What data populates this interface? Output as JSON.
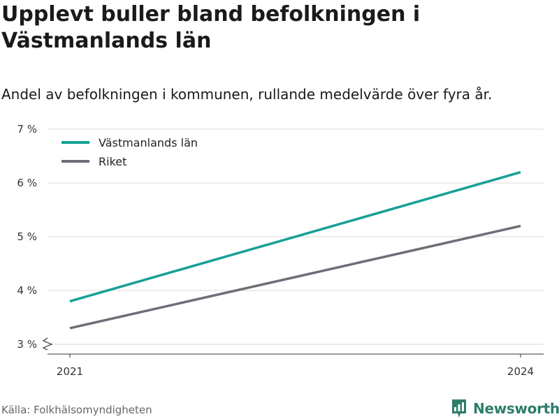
{
  "header": {
    "title": "Upplevt buller bland befolkningen i Västmanlands län",
    "subtitle": "Andel av befolkningen i kommunen, rullande medelvärde över fyra år."
  },
  "chart_data": {
    "type": "line",
    "x": [
      "2021",
      "2024"
    ],
    "series": [
      {
        "name": "Västmanlands län",
        "values": [
          3.8,
          6.2
        ],
        "color": "#16a095"
      },
      {
        "name": "Riket",
        "values": [
          3.3,
          5.2
        ],
        "color": "#6e6e78"
      }
    ],
    "y_ticks": [
      3,
      4,
      5,
      6,
      7
    ],
    "y_tick_labels": [
      "3 %",
      "4 %",
      "5 %",
      "6 %",
      "7 %"
    ],
    "ylim": [
      3,
      7
    ],
    "grid": true,
    "axis_break": true,
    "legend_position": "top-left"
  },
  "footer": {
    "source": "Källa: Folkhälsomyndigheten",
    "brand": "Newsworthy",
    "brand_color": "#2e7d6b"
  },
  "icons": {
    "brand": "newsworthy-logo-icon"
  }
}
